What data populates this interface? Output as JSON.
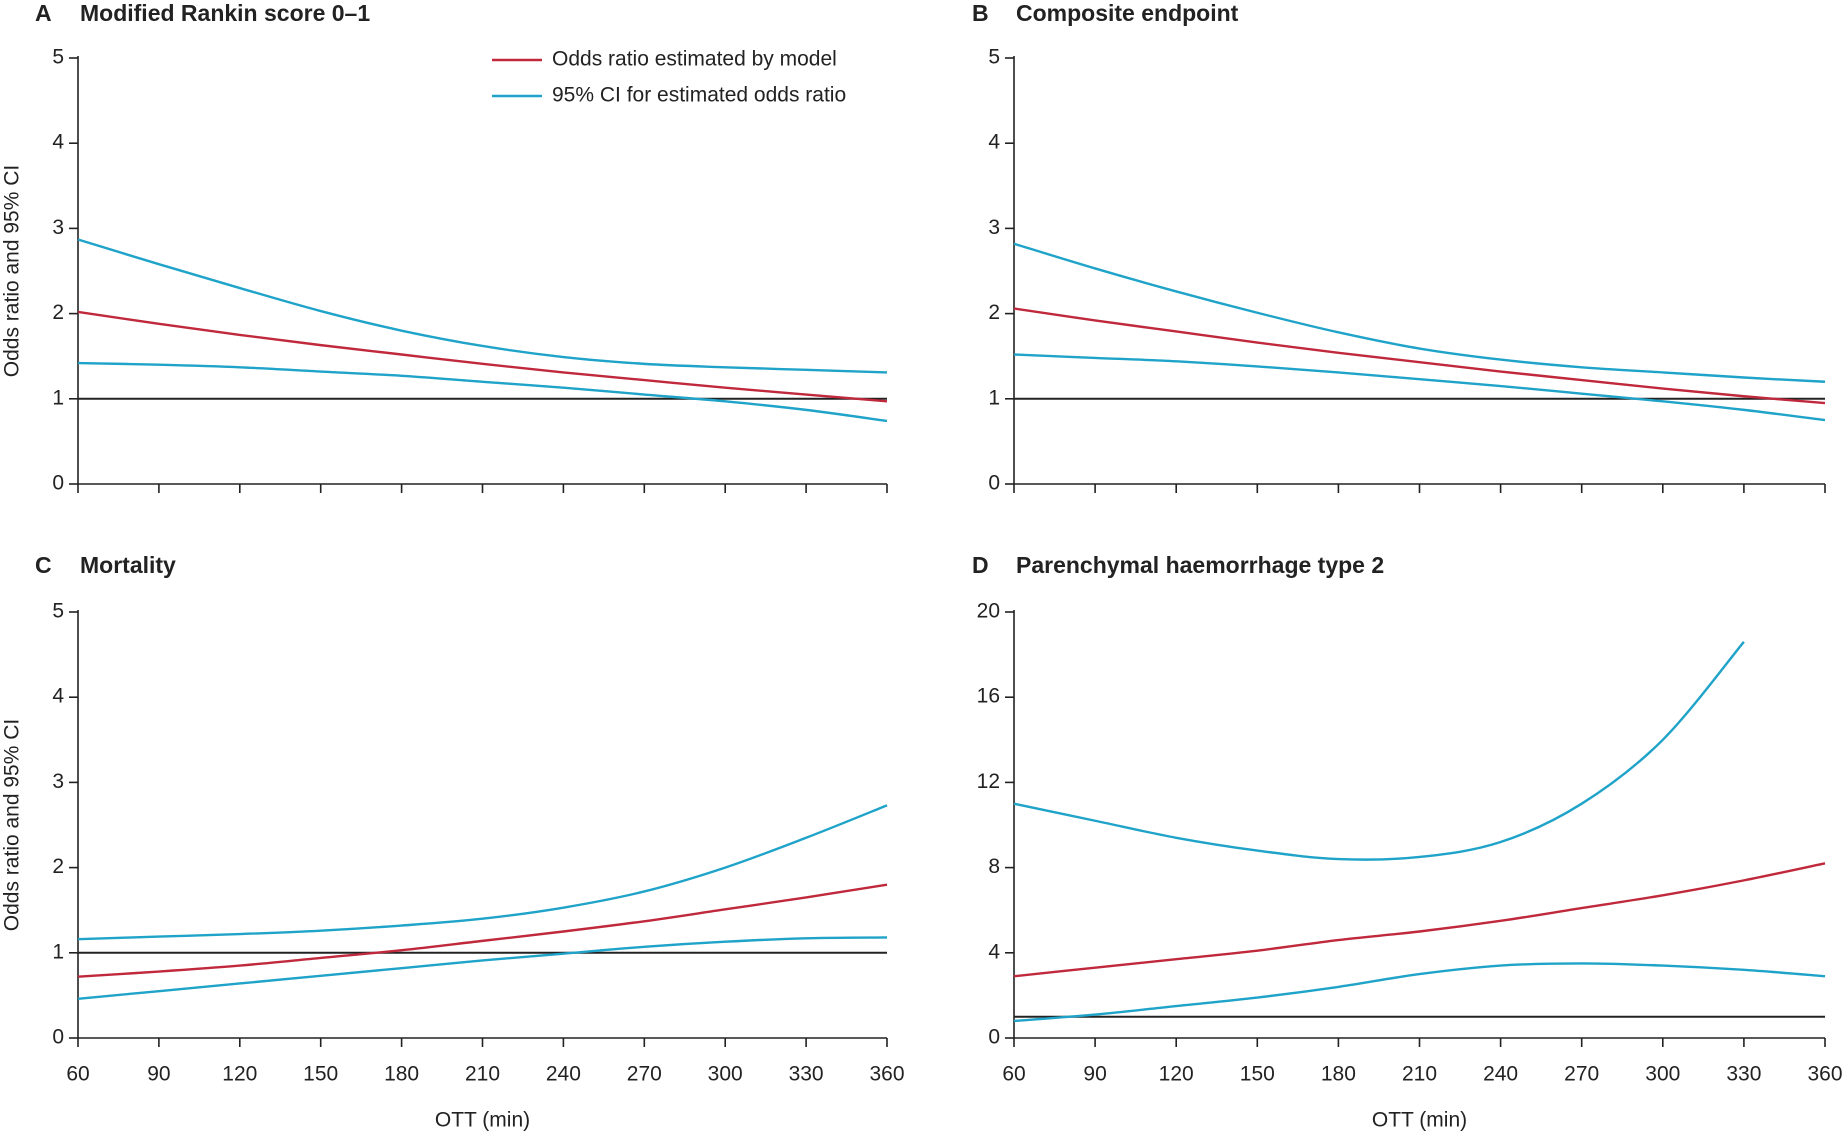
{
  "chart_data": [
    {
      "type": "line",
      "letter": "A",
      "title": "Modified Rankin score 0–1",
      "ylabel": "Odds ratio and 95% CI",
      "x": [
        60,
        90,
        120,
        150,
        180,
        210,
        240,
        270,
        300,
        330,
        360
      ],
      "xlim": [
        60,
        360
      ],
      "xticks": [
        60,
        90,
        120,
        150,
        180,
        210,
        240,
        270,
        300,
        330,
        360
      ],
      "ylim": [
        0,
        5
      ],
      "yticks": [
        0,
        1,
        2,
        3,
        4,
        5
      ],
      "hline": 1,
      "legend": "top-right",
      "series": [
        {
          "name": "Odds ratio estimated by model",
          "color": "#c0283c",
          "values": [
            2.02,
            1.88,
            1.75,
            1.63,
            1.52,
            1.41,
            1.31,
            1.22,
            1.13,
            1.05,
            0.97
          ]
        },
        {
          "name": "95% CI for estimated odds ratio",
          "color": "#1fa3c9",
          "values": [
            2.87,
            2.58,
            2.3,
            2.03,
            1.8,
            1.62,
            1.49,
            1.41,
            1.37,
            1.34,
            1.31
          ]
        },
        {
          "color": "#1fa3c9",
          "values": [
            1.42,
            1.4,
            1.37,
            1.32,
            1.27,
            1.2,
            1.13,
            1.05,
            0.97,
            0.87,
            0.74
          ]
        }
      ]
    },
    {
      "type": "line",
      "letter": "B",
      "title": "Composite endpoint",
      "x": [
        60,
        90,
        120,
        150,
        180,
        210,
        240,
        270,
        300,
        330,
        360
      ],
      "xlim": [
        60,
        360
      ],
      "xticks": [
        60,
        90,
        120,
        150,
        180,
        210,
        240,
        270,
        300,
        330,
        360
      ],
      "ylim": [
        0,
        5
      ],
      "yticks": [
        0,
        1,
        2,
        3,
        4,
        5
      ],
      "hline": 1,
      "series": [
        {
          "color": "#c0283c",
          "values": [
            2.06,
            1.92,
            1.79,
            1.66,
            1.54,
            1.43,
            1.32,
            1.22,
            1.12,
            1.03,
            0.95
          ]
        },
        {
          "color": "#1fa3c9",
          "values": [
            2.82,
            2.53,
            2.26,
            2.01,
            1.78,
            1.59,
            1.46,
            1.37,
            1.31,
            1.25,
            1.2
          ]
        },
        {
          "color": "#1fa3c9",
          "values": [
            1.52,
            1.48,
            1.44,
            1.38,
            1.31,
            1.23,
            1.15,
            1.06,
            0.97,
            0.87,
            0.75
          ]
        }
      ]
    },
    {
      "type": "line",
      "letter": "C",
      "title": "Mortality",
      "ylabel": "Odds ratio and 95% CI",
      "xlabel": "OTT (min)",
      "x": [
        60,
        90,
        120,
        150,
        180,
        210,
        240,
        270,
        300,
        330,
        360
      ],
      "xlim": [
        60,
        360
      ],
      "xticks": [
        60,
        90,
        120,
        150,
        180,
        210,
        240,
        270,
        300,
        330,
        360
      ],
      "ylim": [
        0,
        5
      ],
      "yticks": [
        0,
        1,
        2,
        3,
        4,
        5
      ],
      "hline": 1,
      "series": [
        {
          "color": "#c0283c",
          "values": [
            0.72,
            0.78,
            0.85,
            0.94,
            1.03,
            1.14,
            1.25,
            1.37,
            1.51,
            1.65,
            1.8
          ]
        },
        {
          "color": "#1fa3c9",
          "values": [
            1.16,
            1.19,
            1.22,
            1.26,
            1.32,
            1.4,
            1.53,
            1.72,
            2.0,
            2.35,
            2.73
          ]
        },
        {
          "color": "#1fa3c9",
          "values": [
            0.46,
            0.55,
            0.64,
            0.73,
            0.82,
            0.91,
            0.99,
            1.07,
            1.13,
            1.17,
            1.18
          ]
        }
      ]
    },
    {
      "type": "line",
      "letter": "D",
      "title": "Parenchymal haemorrhage type 2",
      "xlabel": "OTT (min)",
      "x": [
        60,
        90,
        120,
        150,
        180,
        210,
        240,
        270,
        300,
        330,
        360
      ],
      "xlim": [
        60,
        360
      ],
      "xticks": [
        60,
        90,
        120,
        150,
        180,
        210,
        240,
        270,
        300,
        330,
        360
      ],
      "ylim": [
        0,
        20
      ],
      "yticks": [
        0,
        4,
        8,
        12,
        16,
        20
      ],
      "hline": 1,
      "series": [
        {
          "color": "#c0283c",
          "values": [
            2.9,
            3.3,
            3.7,
            4.1,
            4.6,
            5.0,
            5.5,
            6.1,
            6.7,
            7.4,
            8.2
          ]
        },
        {
          "color": "#1fa3c9",
          "values": [
            11.0,
            10.2,
            9.4,
            8.8,
            8.4,
            8.5,
            9.2,
            11.0,
            14.0,
            18.6,
            null
          ]
        },
        {
          "color": "#1fa3c9",
          "values": [
            0.8,
            1.1,
            1.5,
            1.9,
            2.4,
            3.0,
            3.4,
            3.5,
            3.4,
            3.2,
            2.9
          ]
        }
      ]
    }
  ]
}
